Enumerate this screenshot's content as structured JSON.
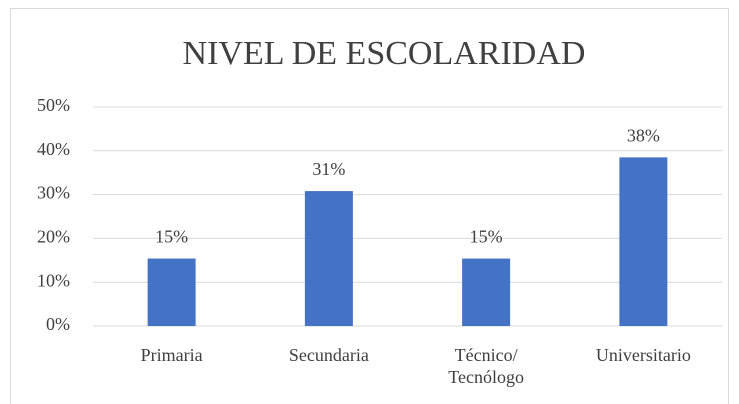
{
  "chart_data": {
    "type": "bar",
    "title": "NIVEL DE ESCOLARIDAD",
    "categories": [
      "Primaria",
      "Secundaria",
      "Técnico/\nTecnólogo",
      "Universitario"
    ],
    "values": [
      15.4,
      30.8,
      15.4,
      38.5
    ],
    "value_labels": [
      "15%",
      "31%",
      "15%",
      "38%"
    ],
    "color": "#4472c4",
    "ylim": [
      0,
      50
    ],
    "yticks": [
      {
        "value": 0,
        "label": "0%"
      },
      {
        "value": 10,
        "label": "10%"
      },
      {
        "value": 20,
        "label": "20%"
      },
      {
        "value": 30,
        "label": "30%"
      },
      {
        "value": 40,
        "label": "40%"
      },
      {
        "value": 50,
        "label": "50%"
      }
    ],
    "grid": true
  }
}
